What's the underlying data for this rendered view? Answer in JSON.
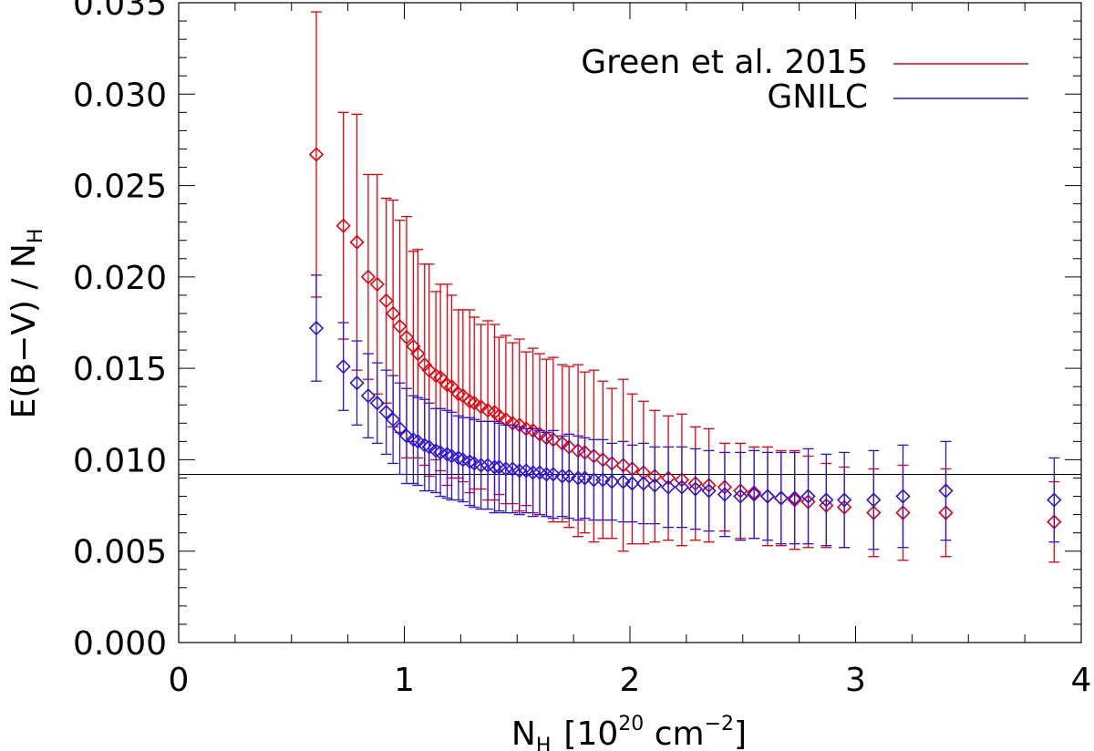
{
  "chart_data": {
    "type": "scatter",
    "xlabel_base": "N",
    "xlabel_sub": "H",
    "xlabel_units_pre": "[10",
    "xlabel_units_exp": "20",
    "xlabel_units_mid": " cm",
    "xlabel_units_exp2": "−2",
    "xlabel_units_post": "]",
    "ylabel_main": "E(B−V) / N",
    "ylabel_sub": "H",
    "xlim": [
      0,
      4
    ],
    "ylim": [
      0,
      0.035
    ],
    "x_ticks": [
      {
        "v": 0,
        "label": "0"
      },
      {
        "v": 1,
        "label": "1"
      },
      {
        "v": 2,
        "label": "2"
      },
      {
        "v": 3,
        "label": "3"
      },
      {
        "v": 4,
        "label": "4"
      }
    ],
    "y_ticks": [
      {
        "v": 0.0,
        "label": "0.000"
      },
      {
        "v": 0.005,
        "label": "0.005"
      },
      {
        "v": 0.01,
        "label": "0.010"
      },
      {
        "v": 0.015,
        "label": "0.015"
      },
      {
        "v": 0.02,
        "label": "0.020"
      },
      {
        "v": 0.025,
        "label": "0.025"
      },
      {
        "v": 0.03,
        "label": "0.030"
      },
      {
        "v": 0.035,
        "label": "0.035"
      }
    ],
    "reference_line_y": 0.0092,
    "legend_position": "top-right",
    "series": [
      {
        "name": "Green et al. 2015",
        "color": "#e8000b",
        "x": [
          0.61,
          0.73,
          0.79,
          0.84,
          0.88,
          0.92,
          0.95,
          0.98,
          1.01,
          1.04,
          1.06,
          1.09,
          1.11,
          1.14,
          1.16,
          1.19,
          1.21,
          1.24,
          1.26,
          1.29,
          1.31,
          1.34,
          1.37,
          1.4,
          1.42,
          1.45,
          1.48,
          1.51,
          1.54,
          1.57,
          1.6,
          1.63,
          1.66,
          1.7,
          1.73,
          1.77,
          1.8,
          1.84,
          1.88,
          1.92,
          1.97,
          2.01,
          2.06,
          2.11,
          2.17,
          2.23,
          2.29,
          2.35,
          2.42,
          2.49,
          2.55,
          2.61,
          2.67,
          2.73,
          2.79,
          2.87,
          2.95,
          3.08,
          3.21,
          3.4,
          3.88
        ],
        "y": [
          0.0267,
          0.0228,
          0.0219,
          0.02,
          0.0196,
          0.0187,
          0.018,
          0.0173,
          0.0167,
          0.0162,
          0.0158,
          0.0152,
          0.0149,
          0.0146,
          0.0145,
          0.0141,
          0.014,
          0.0136,
          0.0135,
          0.0132,
          0.0131,
          0.0129,
          0.0127,
          0.0126,
          0.0124,
          0.0122,
          0.012,
          0.0119,
          0.0117,
          0.0116,
          0.0114,
          0.0112,
          0.0111,
          0.0109,
          0.0107,
          0.0105,
          0.0104,
          0.0102,
          0.01,
          0.0098,
          0.0097,
          0.0095,
          0.0093,
          0.0091,
          0.009,
          0.0089,
          0.0087,
          0.0086,
          0.0085,
          0.0083,
          0.0082,
          0.008,
          0.0079,
          0.0078,
          0.0077,
          0.0075,
          0.0074,
          0.0071,
          0.0071,
          0.0071,
          0.0066
        ],
        "err": [
          0.0078,
          0.0062,
          0.007,
          0.0056,
          0.006,
          0.0056,
          0.0062,
          0.0058,
          0.0066,
          0.0052,
          0.0057,
          0.0055,
          0.0058,
          0.0046,
          0.0051,
          0.0055,
          0.005,
          0.0046,
          0.0047,
          0.005,
          0.0047,
          0.0045,
          0.0049,
          0.0048,
          0.0043,
          0.0046,
          0.0044,
          0.0047,
          0.0042,
          0.0045,
          0.0044,
          0.0043,
          0.0045,
          0.0043,
          0.0044,
          0.0047,
          0.0044,
          0.0047,
          0.0043,
          0.0041,
          0.0047,
          0.0041,
          0.0039,
          0.0036,
          0.0034,
          0.0036,
          0.0031,
          0.0031,
          0.0024,
          0.0026,
          0.0025,
          0.0027,
          0.0026,
          0.0027,
          0.0025,
          0.0023,
          0.0022,
          0.0024,
          0.0026,
          0.0024,
          0.0022
        ]
      },
      {
        "name": "GNILC",
        "color": "#2b14d8",
        "x": [
          0.61,
          0.73,
          0.79,
          0.84,
          0.88,
          0.92,
          0.95,
          0.98,
          1.01,
          1.04,
          1.06,
          1.09,
          1.11,
          1.14,
          1.16,
          1.19,
          1.21,
          1.24,
          1.26,
          1.29,
          1.31,
          1.34,
          1.37,
          1.4,
          1.42,
          1.45,
          1.48,
          1.51,
          1.54,
          1.57,
          1.6,
          1.63,
          1.66,
          1.7,
          1.73,
          1.77,
          1.8,
          1.84,
          1.88,
          1.92,
          1.97,
          2.01,
          2.06,
          2.11,
          2.17,
          2.23,
          2.29,
          2.35,
          2.42,
          2.49,
          2.55,
          2.61,
          2.67,
          2.73,
          2.79,
          2.87,
          2.95,
          3.08,
          3.21,
          3.4,
          3.88
        ],
        "y": [
          0.0172,
          0.0151,
          0.0142,
          0.0135,
          0.0131,
          0.0126,
          0.0122,
          0.0117,
          0.0113,
          0.0111,
          0.011,
          0.0108,
          0.0107,
          0.0105,
          0.0104,
          0.0103,
          0.0102,
          0.0101,
          0.01,
          0.0099,
          0.0098,
          0.0097,
          0.0097,
          0.0096,
          0.0096,
          0.0095,
          0.0095,
          0.0094,
          0.0094,
          0.0093,
          0.0093,
          0.0092,
          0.0092,
          0.0091,
          0.0091,
          0.009,
          0.009,
          0.0089,
          0.0089,
          0.0088,
          0.0088,
          0.0087,
          0.0087,
          0.0086,
          0.0085,
          0.0085,
          0.0084,
          0.0083,
          0.0081,
          0.008,
          0.0081,
          0.008,
          0.0079,
          0.0079,
          0.008,
          0.0078,
          0.0078,
          0.0078,
          0.008,
          0.0083,
          0.0078
        ],
        "err": [
          0.0029,
          0.0024,
          0.0023,
          0.0023,
          0.0022,
          0.0023,
          0.0024,
          0.0025,
          0.0026,
          0.0024,
          0.0024,
          0.0025,
          0.0024,
          0.0023,
          0.0024,
          0.0024,
          0.0024,
          0.0023,
          0.0023,
          0.0024,
          0.0024,
          0.0024,
          0.0024,
          0.0025,
          0.0024,
          0.0024,
          0.0024,
          0.0024,
          0.0023,
          0.0024,
          0.0023,
          0.0023,
          0.0024,
          0.0022,
          0.0023,
          0.0023,
          0.0022,
          0.0022,
          0.0022,
          0.0021,
          0.0022,
          0.0021,
          0.0022,
          0.0021,
          0.0022,
          0.0022,
          0.0022,
          0.0022,
          0.0023,
          0.0024,
          0.0024,
          0.0024,
          0.0025,
          0.0025,
          0.0026,
          0.0025,
          0.0026,
          0.0027,
          0.0028,
          0.0027,
          0.0023
        ]
      }
    ]
  }
}
